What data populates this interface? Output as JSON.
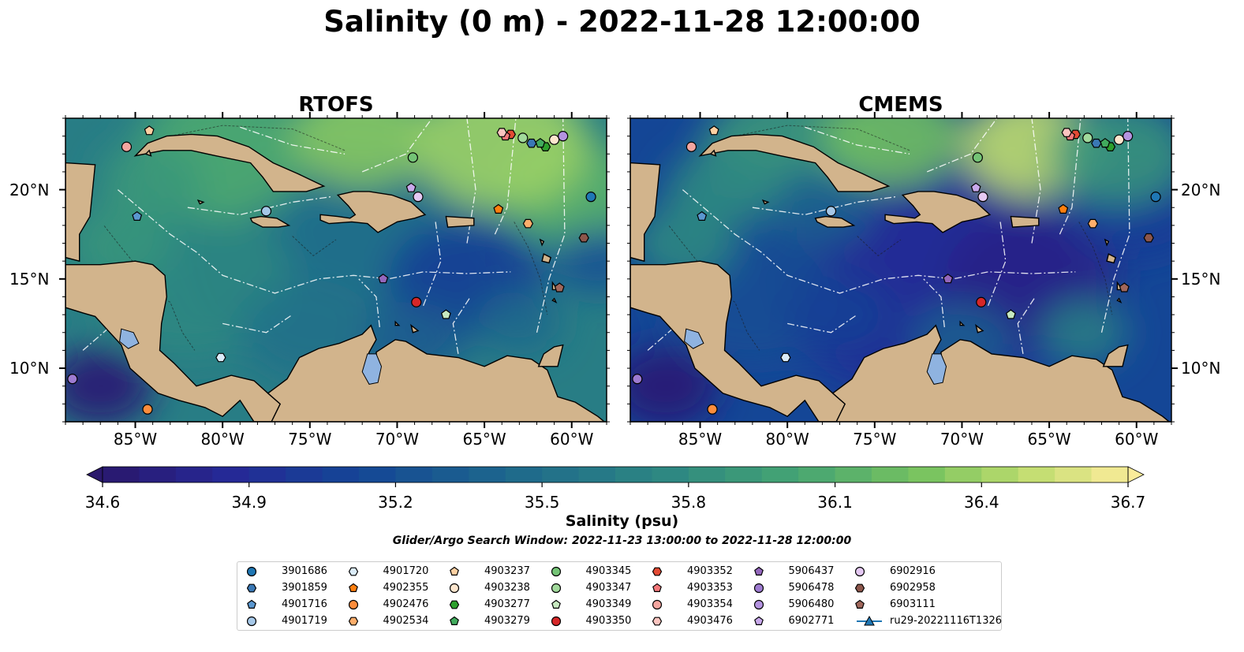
{
  "title": "Salinity (0 m) - 2022-11-28 12:00:00",
  "panels": [
    {
      "title": "RTOFS",
      "field_style": "rtofs"
    },
    {
      "title": "CMEMS",
      "field_style": "cmems"
    }
  ],
  "map": {
    "lon_range": [
      -89,
      -58
    ],
    "lat_range": [
      7,
      24
    ],
    "lon_ticks": [
      {
        "value": -85,
        "label": "85°W"
      },
      {
        "value": -80,
        "label": "80°W"
      },
      {
        "value": -75,
        "label": "75°W"
      },
      {
        "value": -70,
        "label": "70°W"
      },
      {
        "value": -65,
        "label": "65°W"
      },
      {
        "value": -60,
        "label": "60°W"
      }
    ],
    "lat_ticks": [
      {
        "value": 20,
        "label": "20°N"
      },
      {
        "value": 15,
        "label": "15°N"
      },
      {
        "value": 10,
        "label": "10°N"
      }
    ],
    "colors": {
      "land": "#d2b48c",
      "ocean_low": "#2a186c",
      "ocean_high": "#fbec9a",
      "lake": "#8fb3e0"
    }
  },
  "colorbar": {
    "label": "Salinity (psu)",
    "min": 34.6,
    "max": 36.7,
    "step": 0.075,
    "ticks": [
      "34.6",
      "34.9",
      "35.2",
      "35.5",
      "35.8",
      "36.1",
      "36.4",
      "36.7"
    ],
    "colormap": "haline",
    "extend": "both"
  },
  "search_window": "Glider/Argo Search Window: 2022-11-23 13:00:00 to 2022-11-28 12:00:00",
  "floats": [
    {
      "id": "3901686",
      "marker": "circle",
      "color": "#1f77b4",
      "lon": -58.9,
      "lat": 19.6
    },
    {
      "id": "3901859",
      "marker": "hexagon",
      "color": "#3a78b5",
      "lon": -62.3,
      "lat": 22.6
    },
    {
      "id": "4901716",
      "marker": "pentagon",
      "color": "#5a97cf",
      "lon": -84.9,
      "lat": 18.5
    },
    {
      "id": "4901719",
      "marker": "circle",
      "color": "#a6c8e8",
      "lon": -77.5,
      "lat": 18.8
    },
    {
      "id": "4901720",
      "marker": "hexagon",
      "color": "#dbecf9",
      "lon": -80.1,
      "lat": 10.6
    },
    {
      "id": "4902355",
      "marker": "pentagon",
      "color": "#ff7f0e",
      "lon": -64.2,
      "lat": 18.9
    },
    {
      "id": "4902476",
      "marker": "circle",
      "color": "#fd8d3c",
      "lon": -84.3,
      "lat": 7.7
    },
    {
      "id": "4902534",
      "marker": "hexagon",
      "color": "#fdae6b",
      "lon": -62.5,
      "lat": 18.1
    },
    {
      "id": "4903237",
      "marker": "pentagon",
      "color": "#fdd0a2",
      "lon": -84.2,
      "lat": 23.3
    },
    {
      "id": "4903238",
      "marker": "circle",
      "color": "#fee6ce",
      "lon": -61.0,
      "lat": 22.8
    },
    {
      "id": "4903277",
      "marker": "hexagon",
      "color": "#2ca02c",
      "lon": -61.5,
      "lat": 22.4
    },
    {
      "id": "4903279",
      "marker": "pentagon",
      "color": "#41ab5d",
      "lon": -61.8,
      "lat": 22.6
    },
    {
      "id": "4903345",
      "marker": "circle",
      "color": "#74c476",
      "lon": -69.1,
      "lat": 21.8
    },
    {
      "id": "4903347",
      "marker": "circle",
      "color": "#a1d99b",
      "lon": -62.8,
      "lat": 22.9
    },
    {
      "id": "4903349",
      "marker": "pentagon",
      "color": "#c7e9c0",
      "lon": -67.2,
      "lat": 13.0
    },
    {
      "id": "4903350",
      "marker": "circle",
      "color": "#d62728",
      "lon": -68.9,
      "lat": 13.7
    },
    {
      "id": "4903352",
      "marker": "hexagon",
      "color": "#e34a33",
      "lon": -63.5,
      "lat": 23.1
    },
    {
      "id": "4903353",
      "marker": "pentagon",
      "color": "#f4787a",
      "lon": -63.8,
      "lat": 23.0
    },
    {
      "id": "4903354",
      "marker": "circle",
      "color": "#f4a6a0",
      "lon": -85.5,
      "lat": 22.4
    },
    {
      "id": "4903476",
      "marker": "hexagon",
      "color": "#fcc5c0",
      "lon": -64.0,
      "lat": 23.2
    },
    {
      "id": "5906437",
      "marker": "pentagon",
      "color": "#9467bd",
      "lon": -70.8,
      "lat": 15.0
    },
    {
      "id": "5906478",
      "marker": "circle",
      "color": "#9e7bd1",
      "lon": -88.6,
      "lat": 9.4
    },
    {
      "id": "5906480",
      "marker": "circle",
      "color": "#b493e0",
      "lon": -60.5,
      "lat": 23.0
    },
    {
      "id": "6902771",
      "marker": "pentagon",
      "color": "#c9a9ec",
      "lon": -69.2,
      "lat": 20.1
    },
    {
      "id": "6902916",
      "marker": "circle",
      "color": "#e5c9f3",
      "lon": -68.8,
      "lat": 19.6
    },
    {
      "id": "6902958",
      "marker": "hexagon",
      "color": "#8c564b",
      "lon": -59.3,
      "lat": 17.3
    },
    {
      "id": "6903111",
      "marker": "pentagon",
      "color": "#a0675b",
      "lon": -60.7,
      "lat": 14.5
    }
  ],
  "gliders": [
    {
      "id": "ru29-20221116T1326",
      "marker": "triangle",
      "color": "#1f77b4",
      "lon": -64.6,
      "lat": 22.9
    }
  ]
}
